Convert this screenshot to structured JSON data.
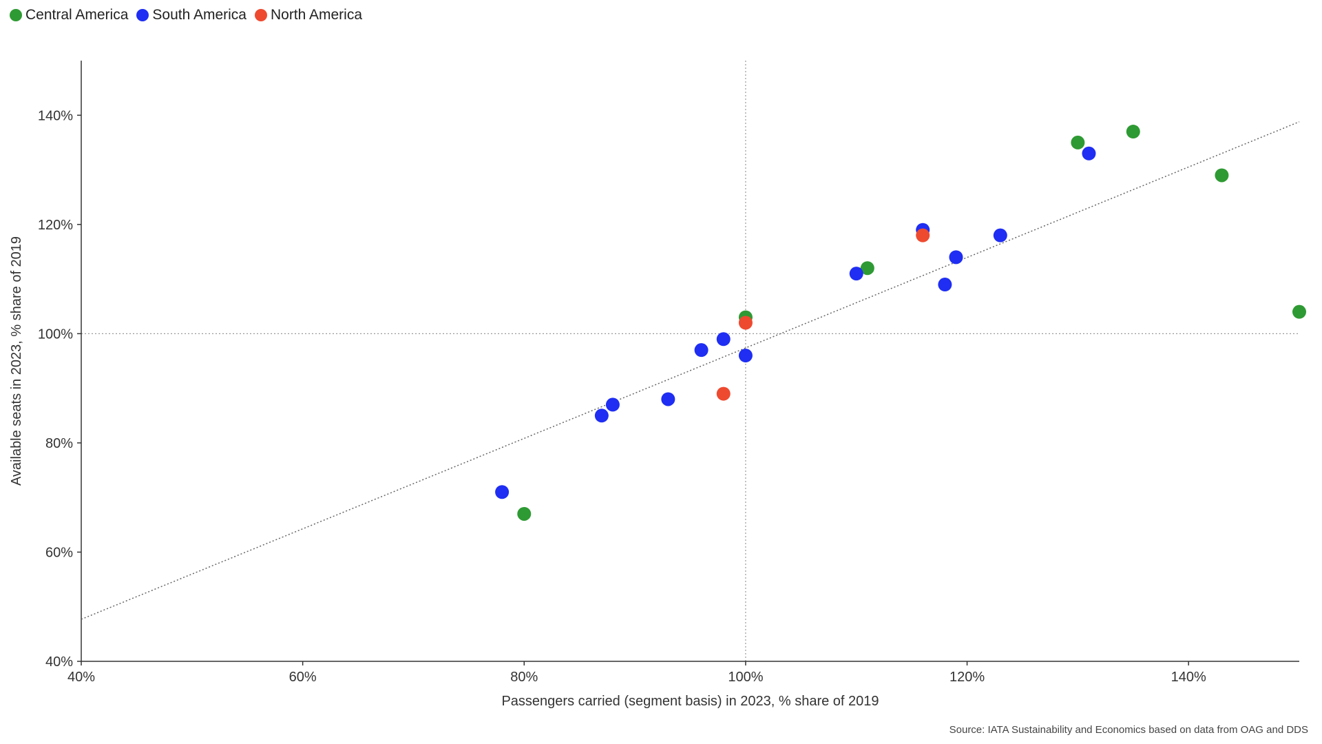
{
  "chart_data": {
    "type": "scatter",
    "xlabel": "Passengers carried (segment basis) in 2023, % share of 2019",
    "ylabel": "Available seats in 2023, % share of 2019",
    "xlim": [
      40,
      150
    ],
    "ylim": [
      40,
      150
    ],
    "x_ticks": [
      40,
      60,
      80,
      100,
      120,
      140
    ],
    "y_ticks": [
      40,
      60,
      80,
      100,
      120,
      140
    ],
    "x_tick_labels": [
      "40%",
      "60%",
      "80%",
      "100%",
      "120%",
      "140%"
    ],
    "y_tick_labels": [
      "40%",
      "60%",
      "80%",
      "100%",
      "120%",
      "140%"
    ],
    "legend_position": "top-left",
    "reference_lines": {
      "x": 100,
      "y": 100,
      "style": "dotted"
    },
    "trendline": {
      "x1": 40,
      "y1": 47.7,
      "x2": 150,
      "y2": 138.8,
      "style": "dotted"
    },
    "series": [
      {
        "name": "Central America",
        "color": "#2e9a33",
        "points": [
          [
            80,
            67
          ],
          [
            100,
            103
          ],
          [
            111,
            112
          ],
          [
            130,
            135
          ],
          [
            135,
            137
          ],
          [
            143,
            129
          ],
          [
            150,
            104
          ]
        ]
      },
      {
        "name": "South America",
        "color": "#1f2ef2",
        "points": [
          [
            78,
            71
          ],
          [
            87,
            85
          ],
          [
            88,
            87
          ],
          [
            93,
            88
          ],
          [
            96,
            97
          ],
          [
            98,
            99
          ],
          [
            100,
            96
          ],
          [
            110,
            111
          ],
          [
            116,
            119
          ],
          [
            118,
            109
          ],
          [
            119,
            114
          ],
          [
            123,
            118
          ],
          [
            131,
            133
          ]
        ]
      },
      {
        "name": "North America",
        "color": "#ee4a30",
        "points": [
          [
            98,
            89
          ],
          [
            100,
            102
          ],
          [
            116,
            118
          ]
        ]
      }
    ]
  },
  "source": "Source: IATA Sustainability and Economics based on data from OAG and DDS"
}
